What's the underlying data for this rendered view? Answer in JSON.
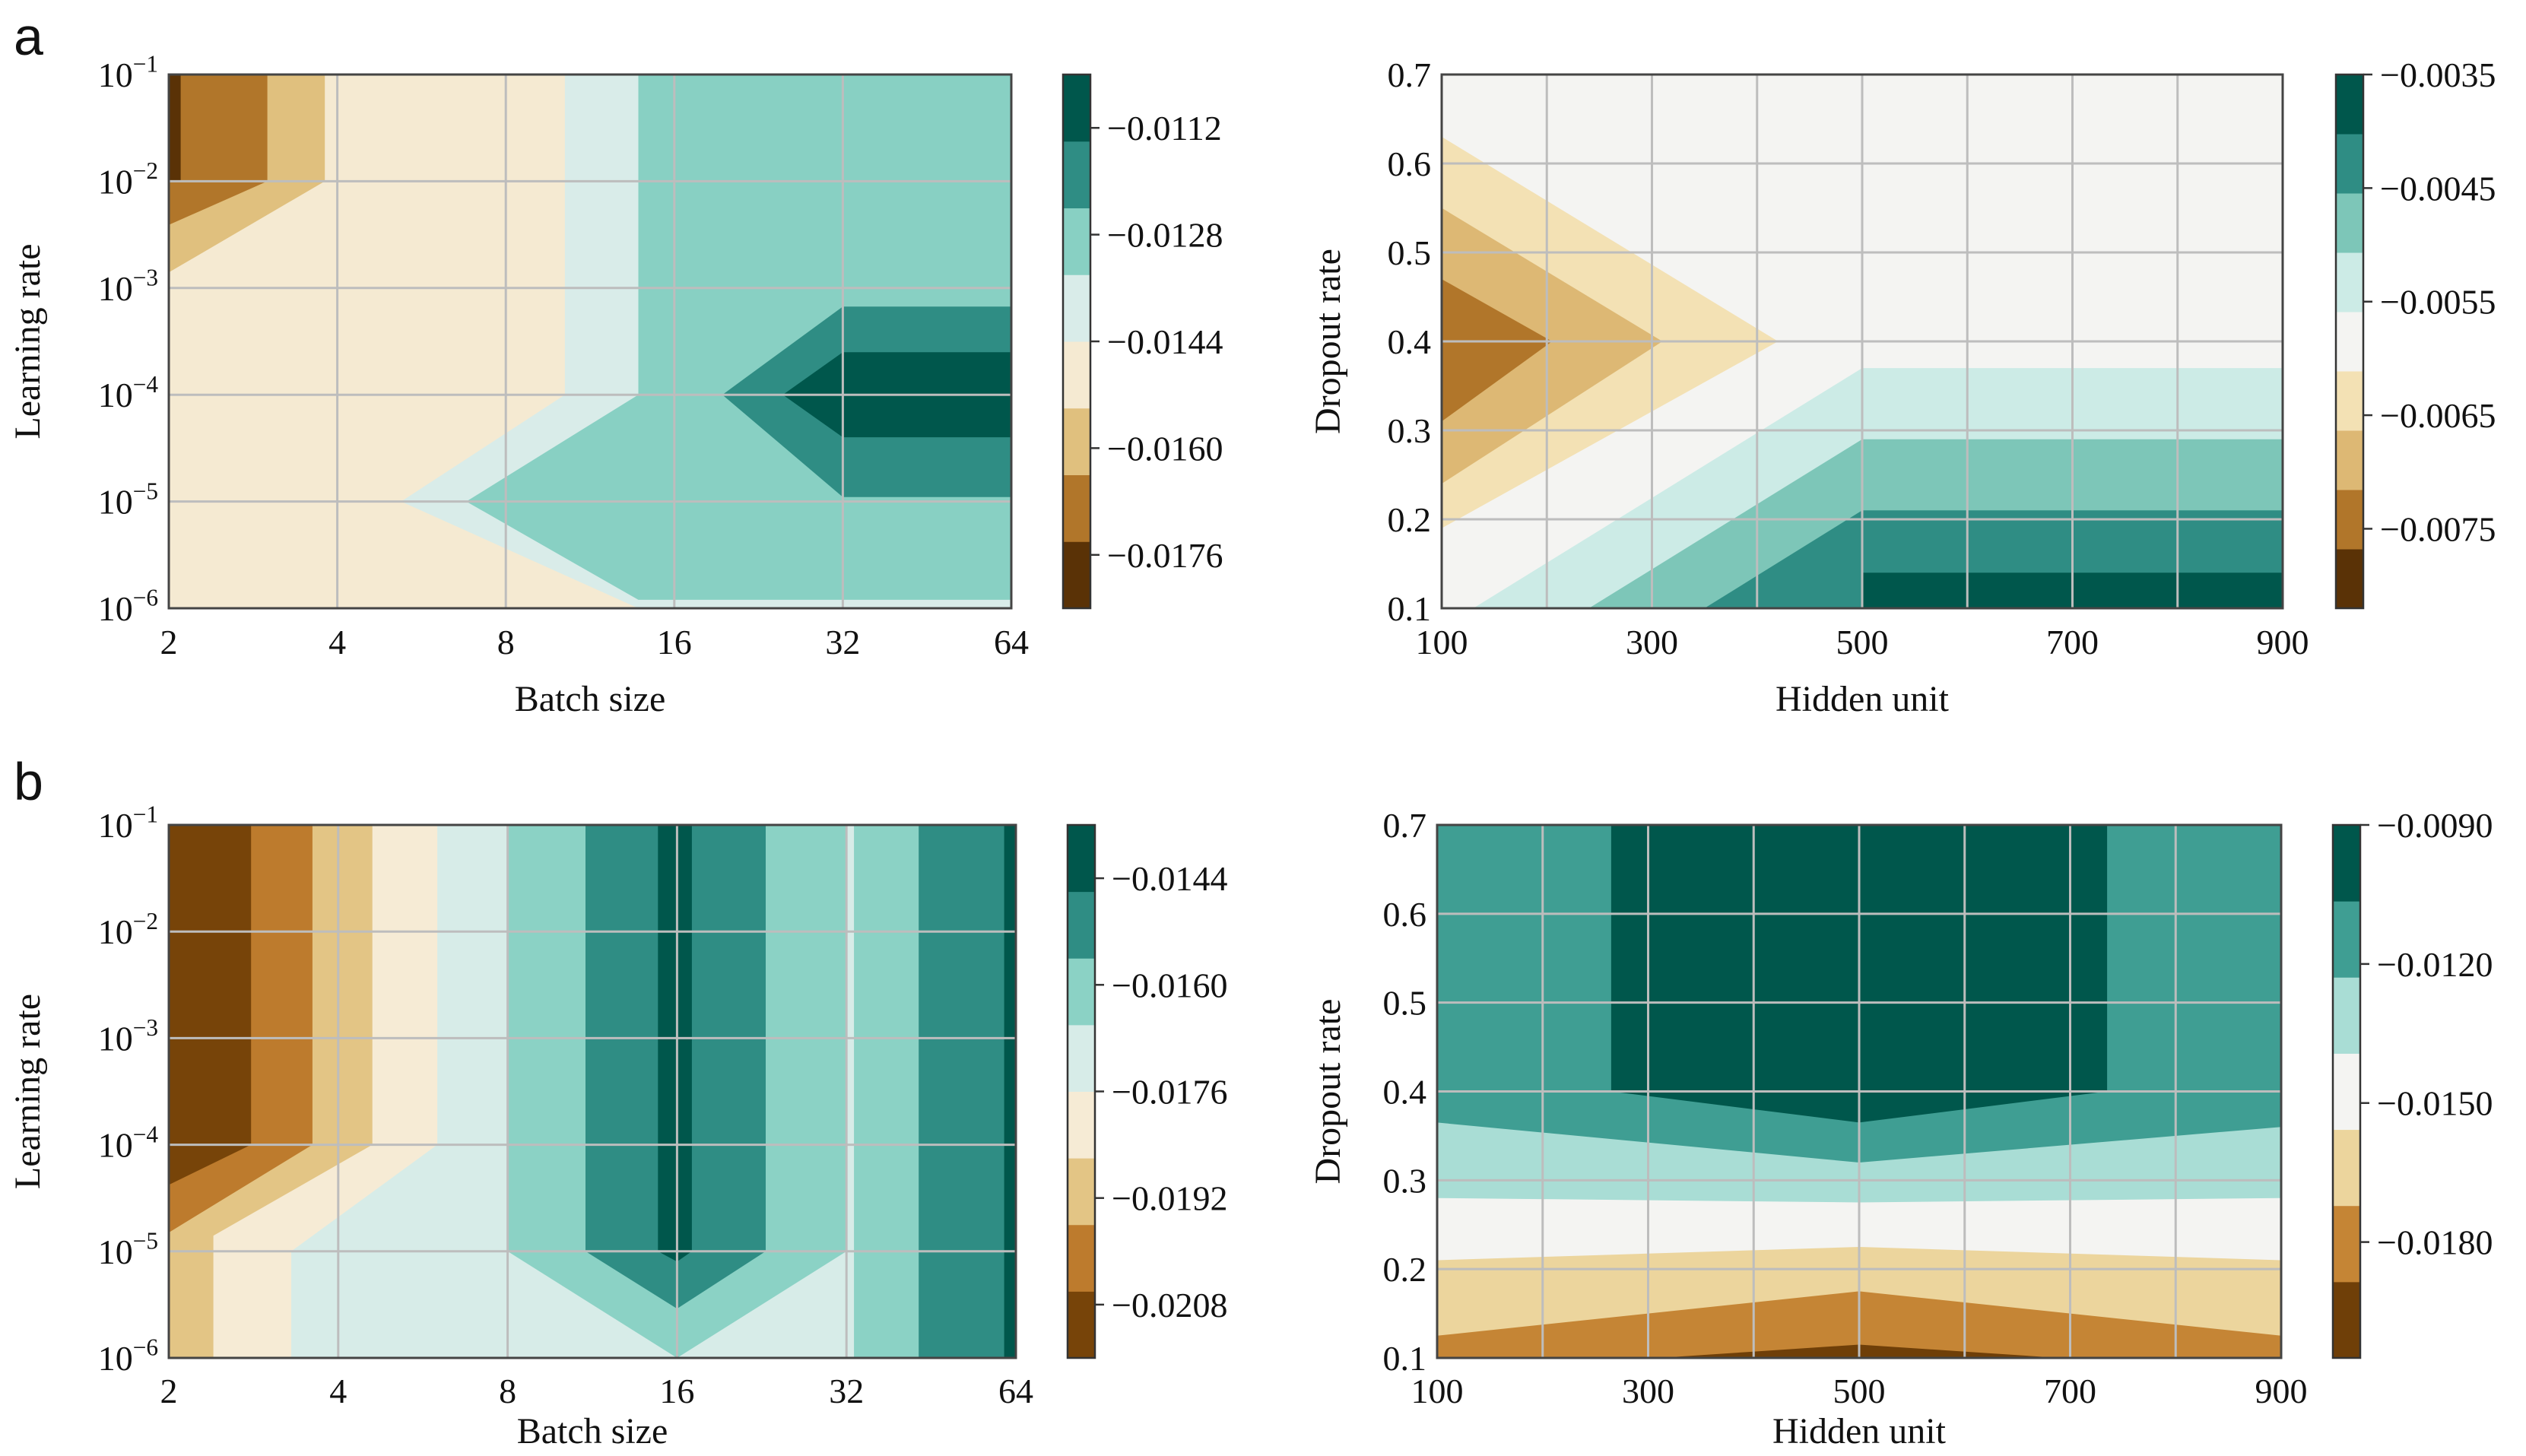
{
  "figure": {
    "panel_letters": [
      "a",
      "b"
    ]
  },
  "chart_data": [
    {
      "type": "heatmap",
      "panel": "a",
      "xlabel": "Batch size",
      "ylabel": "Learning rate",
      "x": [
        "2",
        "4",
        "8",
        "16",
        "32",
        "64"
      ],
      "y": [
        "10^-6",
        "10^-5",
        "10^-4",
        "10^-3",
        "10^-2",
        "10^-1"
      ],
      "colorbar": {
        "ticks": [
          "-0.0112",
          "-0.0128",
          "-0.0144",
          "-0.0160",
          "-0.0176"
        ],
        "range": [
          -0.0184,
          -0.0104
        ],
        "levels": 8,
        "colors": [
          "#5a3206",
          "#b1762a",
          "#e0c07e",
          "#f5ead2",
          "#d9ece9",
          "#88d0c3",
          "#2f8d84",
          "#00574c"
        ]
      },
      "ylog": true,
      "xlog": true,
      "regions": [
        {
          "level": 3,
          "poly": [
            [
              2,
              1e-06
            ],
            [
              64,
              1e-06
            ],
            [
              64,
              0.1
            ],
            [
              2,
              0.1
            ]
          ]
        },
        {
          "level": 2,
          "poly": [
            [
              2,
              0.0014
            ],
            [
              3.8,
              0.01
            ],
            [
              3.8,
              0.1
            ],
            [
              2,
              0.1
            ]
          ]
        },
        {
          "level": 1,
          "poly": [
            [
              2,
              0.0039
            ],
            [
              3,
              0.01
            ],
            [
              3,
              0.1
            ],
            [
              2,
              0.1
            ]
          ]
        },
        {
          "level": 0,
          "poly": [
            [
              2,
              0.01
            ],
            [
              2.1,
              0.01
            ],
            [
              2.1,
              0.1
            ],
            [
              2,
              0.1
            ]
          ]
        },
        {
          "level": 4,
          "poly": [
            [
              5.2,
              1e-05
            ],
            [
              13.8,
              1e-06
            ],
            [
              64,
              1e-06
            ],
            [
              64,
              0.1
            ],
            [
              10.2,
              0.1
            ],
            [
              10.2,
              0.0001
            ]
          ]
        },
        {
          "level": 5,
          "poly": [
            [
              6.8,
              1e-05
            ],
            [
              13.8,
              1.2e-06
            ],
            [
              64,
              1.2e-06
            ],
            [
              64,
              0.1
            ],
            [
              13.8,
              0.1
            ],
            [
              13.8,
              0.0001
            ],
            [
              6.8,
              1e-05
            ]
          ]
        },
        {
          "level": 6,
          "poly": [
            [
              19.5,
              0.0001
            ],
            [
              32,
              0.00067
            ],
            [
              64,
              0.00067
            ],
            [
              64,
              1.1e-05
            ],
            [
              32,
              1.1e-05
            ]
          ]
        },
        {
          "level": 7,
          "poly": [
            [
              25,
              0.0001
            ],
            [
              32,
              0.00025
            ],
            [
              64,
              0.00025
            ],
            [
              64,
              4e-05
            ],
            [
              32,
              4e-05
            ]
          ]
        }
      ]
    },
    {
      "type": "heatmap",
      "panel": "a",
      "xlabel": "Hidden unit",
      "ylabel": "Dropout rate",
      "x": [
        "100",
        "300",
        "500",
        "700",
        "900"
      ],
      "y": [
        "0.1",
        "0.2",
        "0.3",
        "0.4",
        "0.5",
        "0.6",
        "0.7"
      ],
      "colorbar": {
        "ticks": [
          "-0.0035",
          "-0.0045",
          "-0.0055",
          "-0.0065",
          "-0.0075"
        ],
        "range": [
          -0.0082,
          -0.0035
        ],
        "levels": 9,
        "colors": [
          "#5a3206",
          "#b1762a",
          "#ddb874",
          "#f3e1b4",
          "#f4f4f2",
          "#ccebe6",
          "#7dc6b8",
          "#2f8d84",
          "#00574c"
        ]
      },
      "xlog": false,
      "ylog": false,
      "regions": [
        {
          "level": 4,
          "poly": [
            [
              100,
              0.1
            ],
            [
              900,
              0.1
            ],
            [
              900,
              0.7
            ],
            [
              100,
              0.7
            ]
          ]
        },
        {
          "level": 3,
          "poly": [
            [
              100,
              0.19
            ],
            [
              420,
              0.4
            ],
            [
              100,
              0.63
            ]
          ]
        },
        {
          "level": 2,
          "poly": [
            [
              100,
              0.24
            ],
            [
              310,
              0.4
            ],
            [
              100,
              0.55
            ]
          ]
        },
        {
          "level": 1,
          "poly": [
            [
              100,
              0.31
            ],
            [
              205,
              0.4
            ],
            [
              100,
              0.47
            ]
          ]
        },
        {
          "level": 5,
          "poly": [
            [
              130,
              0.1
            ],
            [
              500,
              0.37
            ],
            [
              900,
              0.37
            ],
            [
              900,
              0.1
            ]
          ]
        },
        {
          "level": 6,
          "poly": [
            [
              240,
              0.1
            ],
            [
              500,
              0.29
            ],
            [
              900,
              0.29
            ],
            [
              900,
              0.1
            ]
          ]
        },
        {
          "level": 7,
          "poly": [
            [
              350,
              0.1
            ],
            [
              500,
              0.21
            ],
            [
              900,
              0.21
            ],
            [
              900,
              0.1
            ]
          ]
        },
        {
          "level": 8,
          "poly": [
            [
              500,
              0.1
            ],
            [
              500,
              0.14
            ],
            [
              900,
              0.14
            ],
            [
              900,
              0.1
            ]
          ]
        }
      ]
    },
    {
      "type": "heatmap",
      "panel": "b",
      "xlabel": "Batch size",
      "ylabel": "Learning rate",
      "x": [
        "2",
        "4",
        "8",
        "16",
        "32",
        "64"
      ],
      "y": [
        "10^-6",
        "10^-5",
        "10^-4",
        "10^-3",
        "10^-2",
        "10^-1"
      ],
      "colorbar": {
        "ticks": [
          "-0.0144",
          "-0.0160",
          "-0.0176",
          "-0.0192",
          "-0.0208"
        ],
        "range": [
          -0.0216,
          -0.0136
        ],
        "levels": 8,
        "colors": [
          "#774409",
          "#bd7b2d",
          "#e3c585",
          "#f6ebd5",
          "#d7ece8",
          "#8bd2c5",
          "#2f8d84",
          "#00574c"
        ]
      },
      "xlog": true,
      "ylog": true,
      "regions": [
        {
          "level": 4,
          "poly": [
            [
              2,
              1e-06
            ],
            [
              64,
              1e-06
            ],
            [
              64,
              0.1
            ],
            [
              2,
              0.1
            ]
          ]
        },
        {
          "level": 3,
          "poly": [
            [
              2,
              1e-06
            ],
            [
              3.3,
              1e-06
            ],
            [
              3.3,
              1e-05
            ],
            [
              6,
              0.0001
            ],
            [
              6,
              0.1
            ],
            [
              2,
              0.1
            ]
          ]
        },
        {
          "level": 2,
          "poly": [
            [
              2,
              1e-06
            ],
            [
              2.4,
              1e-06
            ],
            [
              2.4,
              1.4e-05
            ],
            [
              4.6,
              0.0001
            ],
            [
              4.6,
              0.1
            ],
            [
              2,
              0.1
            ]
          ]
        },
        {
          "level": 1,
          "poly": [
            [
              2,
              1.5e-05
            ],
            [
              3.6,
              0.0001
            ],
            [
              3.6,
              0.1
            ],
            [
              2,
              0.1
            ]
          ]
        },
        {
          "level": 0,
          "poly": [
            [
              2,
              4.2e-05
            ],
            [
              2.8,
              0.0001
            ],
            [
              2.8,
              0.1
            ],
            [
              2,
              0.1
            ]
          ]
        },
        {
          "level": 5,
          "poly": [
            [
              8,
              1e-05
            ],
            [
              16,
              1e-06
            ],
            [
              32,
              1e-05
            ],
            [
              32,
              0.1
            ],
            [
              8,
              0.1
            ]
          ]
        },
        {
          "level": 5,
          "poly": [
            [
              33,
              1e-06
            ],
            [
              64,
              1e-06
            ],
            [
              64,
              0.1
            ],
            [
              33,
              0.1
            ]
          ]
        },
        {
          "level": 6,
          "poly": [
            [
              11,
              1e-05
            ],
            [
              16,
              2.9e-06
            ],
            [
              23,
              1e-05
            ],
            [
              23,
              0.1
            ],
            [
              11,
              0.1
            ]
          ]
        },
        {
          "level": 6,
          "poly": [
            [
              43,
              1e-06
            ],
            [
              64,
              1e-06
            ],
            [
              64,
              0.1
            ],
            [
              43,
              0.1
            ]
          ]
        },
        {
          "level": 7,
          "poly": [
            [
              14.8,
              1e-05
            ],
            [
              16,
              8e-06
            ],
            [
              17,
              1e-05
            ],
            [
              17,
              0.1
            ],
            [
              14.8,
              0.1
            ]
          ]
        },
        {
          "level": 7,
          "poly": [
            [
              61,
              1e-06
            ],
            [
              64,
              1e-06
            ],
            [
              64,
              0.1
            ],
            [
              61,
              0.1
            ]
          ]
        }
      ]
    },
    {
      "type": "heatmap",
      "panel": "b",
      "xlabel": "Hidden unit",
      "ylabel": "Dropout rate",
      "x": [
        "100",
        "300",
        "500",
        "700",
        "900"
      ],
      "y": [
        "0.1",
        "0.2",
        "0.3",
        "0.4",
        "0.5",
        "0.6",
        "0.7"
      ],
      "colorbar": {
        "ticks": [
          "-0.0090",
          "-0.0120",
          "-0.0150",
          "-0.0180"
        ],
        "range": [
          -0.0205,
          -0.009
        ],
        "levels": 7,
        "colors": [
          "#6f3f08",
          "#c58535",
          "#ecd59d",
          "#f4f4f2",
          "#a9ddd5",
          "#3f9e93",
          "#00574c"
        ]
      },
      "xlog": false,
      "ylog": false,
      "regions": [
        {
          "level": 5,
          "poly": [
            [
              100,
              0.1
            ],
            [
              900,
              0.1
            ],
            [
              900,
              0.7
            ],
            [
              100,
              0.7
            ]
          ]
        },
        {
          "level": 6,
          "poly": [
            [
              265,
              0.4
            ],
            [
              265,
              0.7
            ],
            [
              735,
              0.7
            ],
            [
              735,
              0.4
            ],
            [
              500,
              0.365
            ]
          ]
        },
        {
          "level": 4,
          "poly": [
            [
              100,
              0.1
            ],
            [
              900,
              0.1
            ],
            [
              900,
              0.36
            ],
            [
              500,
              0.32
            ],
            [
              100,
              0.365
            ]
          ]
        },
        {
          "level": 3,
          "poly": [
            [
              100,
              0.1
            ],
            [
              900,
              0.1
            ],
            [
              900,
              0.28
            ],
            [
              500,
              0.275
            ],
            [
              100,
              0.28
            ]
          ]
        },
        {
          "level": 2,
          "poly": [
            [
              100,
              0.1
            ],
            [
              900,
              0.1
            ],
            [
              900,
              0.21
            ],
            [
              500,
              0.225
            ],
            [
              100,
              0.21
            ]
          ]
        },
        {
          "level": 1,
          "poly": [
            [
              100,
              0.1
            ],
            [
              900,
              0.1
            ],
            [
              900,
              0.125
            ],
            [
              500,
              0.175
            ],
            [
              100,
              0.125
            ]
          ]
        },
        {
          "level": 0,
          "poly": [
            [
              310,
              0.1
            ],
            [
              500,
              0.115
            ],
            [
              690,
              0.1
            ]
          ]
        }
      ]
    }
  ]
}
